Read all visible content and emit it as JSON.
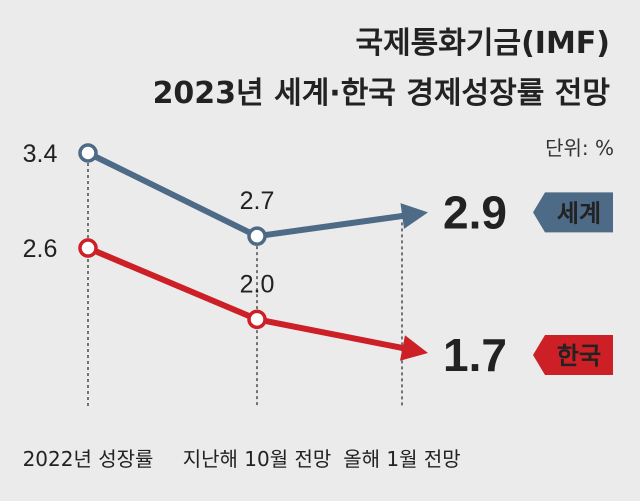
{
  "chart_data": {
    "type": "line",
    "title": "국제통화기금(IMF)",
    "subtitle": "2023년 세계·한국 경제성장률 전망",
    "unit": "단위: %",
    "categories": [
      "2022년 성장률",
      "지난해 10월 전망",
      "올해 1월 전망"
    ],
    "series": [
      {
        "name": "세계",
        "values": [
          3.4,
          2.7,
          2.9
        ],
        "color": "#4d6a86"
      },
      {
        "name": "한국",
        "values": [
          2.6,
          2.0,
          1.7
        ],
        "color": "#cc1f26"
      }
    ],
    "value_labels": {
      "세계": [
        "3.4",
        "2.7",
        "2.9"
      ],
      "한국": [
        "2.6",
        "2.0",
        "1.7"
      ]
    }
  }
}
